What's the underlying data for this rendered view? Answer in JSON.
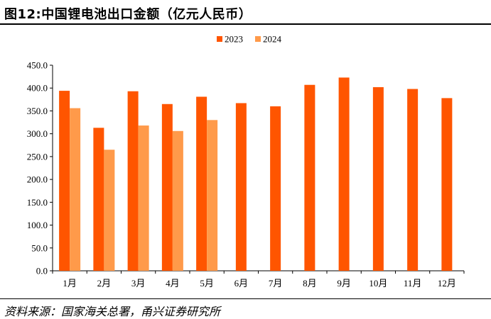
{
  "header": {
    "title": "图12:中国锂电池出口金额（亿元人民币）"
  },
  "footer": {
    "source": "资料来源：国家海关总署，甬兴证券研究所"
  },
  "chart_data": {
    "type": "bar",
    "title": "图12:中国锂电池出口金额（亿元人民币）",
    "xlabel": "",
    "ylabel": "",
    "ylim": [
      0,
      450
    ],
    "yticks": [
      "0.0",
      "50.0",
      "100.0",
      "150.0",
      "200.0",
      "250.0",
      "300.0",
      "350.0",
      "400.0",
      "450.0"
    ],
    "grid": false,
    "legend_position": "top-center",
    "categories": [
      "1月",
      "2月",
      "3月",
      "4月",
      "5月",
      "6月",
      "7月",
      "8月",
      "9月",
      "10月",
      "11月",
      "12月"
    ],
    "series": [
      {
        "name": "2023",
        "color": "#FF5500",
        "values": [
          394,
          313,
          393,
          365,
          381,
          367,
          360,
          407,
          423,
          402,
          398,
          378
        ]
      },
      {
        "name": "2024",
        "color": "#FF9A4A",
        "values": [
          356,
          265,
          318,
          306,
          330,
          null,
          null,
          null,
          null,
          null,
          null,
          null
        ]
      }
    ]
  }
}
